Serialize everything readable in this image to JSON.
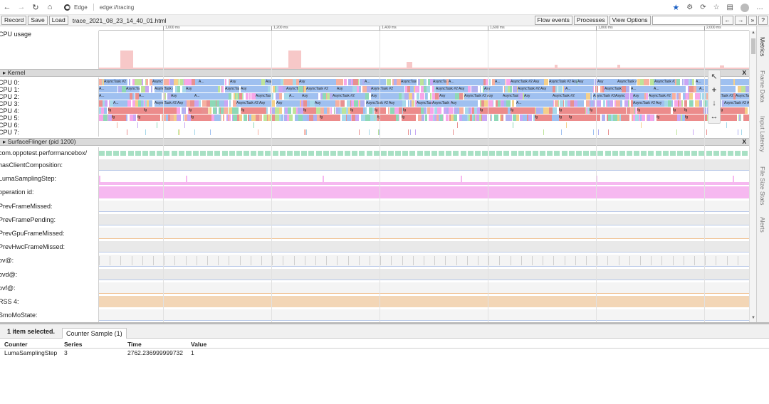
{
  "browser": {
    "brand": "Edge",
    "url": "edge://tracing",
    "star_color": "#1a5fc4"
  },
  "toolbar": {
    "record_label": "Record",
    "save_label": "Save",
    "load_label": "Load",
    "filename": "trace_2021_08_23_14_40_01.html",
    "flow_events_label": "Flow events",
    "processes_label": "Processes",
    "view_options_label": "View Options",
    "prev_label": "←",
    "next_label": "→",
    "more_label": "»",
    "help_label": "?"
  },
  "ruler": {
    "ticks": [
      "1,000 ms",
      "1,200 ms",
      "1,400 ms",
      "1,600 ms",
      "1,800 ms",
      "2,000 ms"
    ]
  },
  "cpu_usage": {
    "label": "CPU usage",
    "color": "#f7c8c8"
  },
  "kernel": {
    "title": "Kernel",
    "close": "X",
    "cpus": [
      "CPU 0:",
      "CPU 1:",
      "CPU 2:",
      "CPU 3:",
      "CPU 4:",
      "CPU 5:",
      "CPU 6:",
      "CPU 7:"
    ],
    "slice_labels": [
      "A...",
      "Asy",
      "AsyncTask #2",
      "AsyncTask #2 Asy",
      "fg"
    ]
  },
  "surfaceflinger": {
    "title": "SurfaceFlinger (pid 1200)",
    "close": "X",
    "tracks": [
      {
        "label": "com.oppotest.performancebox/",
        "color": "#a8e0c4"
      },
      {
        "label": "hasClientComposition:",
        "color": "#e8e8e8"
      },
      {
        "label": "LumaSamplingStep:",
        "color": "#f6b8f0"
      },
      {
        "label": "operation id:",
        "color": "#f6b8f0"
      },
      {
        "label": "PrevFrameMissed:",
        "color": "#e8e8e8"
      },
      {
        "label": "PrevFramePending:",
        "color": "#e8e8e8"
      },
      {
        "label": "PrevGpuFrameMissed:",
        "color": "#e8e8e8"
      },
      {
        "label": "PrevHwcFrameMissed:",
        "color": "#e8e8e8"
      },
      {
        "label": "ov@:",
        "color": "#e8e8e8"
      },
      {
        "label": "ovd@:",
        "color": "#e8e8e8"
      },
      {
        "label": "ovf@:",
        "color": "#e8e8e8"
      },
      {
        "label": "RSS 4:",
        "color": "#f3d6b6"
      },
      {
        "label": "SmoMoState:",
        "color": "#e8e8e8"
      }
    ]
  },
  "sidetabs": [
    "Metrics",
    "Frame Data",
    "Input Latency",
    "File Size Stats",
    "Alerts"
  ],
  "bottom": {
    "selection": "1 item selected.",
    "tab": "Counter Sample (1)",
    "columns": [
      "Counter",
      "Series",
      "Time",
      "Value"
    ],
    "rows": [
      [
        "LumaSamplingStep",
        "3",
        "2762.236999999732",
        "1"
      ]
    ]
  },
  "palette": [
    "#9fc0f0",
    "#f6a6e8",
    "#bde49a",
    "#c9a6f4",
    "#f6b0a0",
    "#a6d8ea",
    "#f4cf8a",
    "#8ed8b6",
    "#e89090",
    "#b0b0f0"
  ]
}
